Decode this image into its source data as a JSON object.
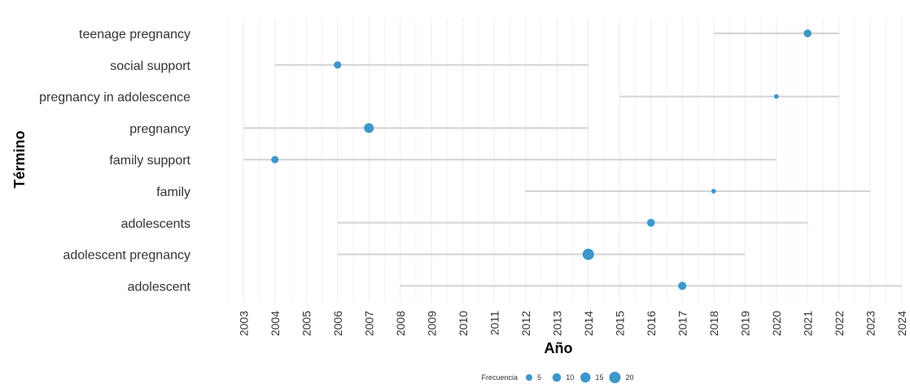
{
  "chart_data": {
    "type": "scatter",
    "xlabel": "Año",
    "ylabel": "Término",
    "x_ticks": [
      2003,
      2004,
      2005,
      2006,
      2007,
      2008,
      2009,
      2010,
      2011,
      2012,
      2013,
      2014,
      2015,
      2016,
      2017,
      2018,
      2019,
      2020,
      2021,
      2022,
      2023,
      2024
    ],
    "grid": true,
    "terms": [
      {
        "term": "teenage pregnancy",
        "start": 2018,
        "end": 2022,
        "peak_year": 2021,
        "frequency": 8
      },
      {
        "term": "social support",
        "start": 2004,
        "end": 2014,
        "peak_year": 2006,
        "frequency": 7
      },
      {
        "term": "pregnancy in adolescence",
        "start": 2015,
        "end": 2022,
        "peak_year": 2020,
        "frequency": 2
      },
      {
        "term": "pregnancy",
        "start": 2003,
        "end": 2014,
        "peak_year": 2007,
        "frequency": 14
      },
      {
        "term": "family support",
        "start": 2003,
        "end": 2020,
        "peak_year": 2004,
        "frequency": 7
      },
      {
        "term": "family",
        "start": 2012,
        "end": 2023,
        "peak_year": 2018,
        "frequency": 2
      },
      {
        "term": "adolescents",
        "start": 2006,
        "end": 2021,
        "peak_year": 2016,
        "frequency": 8
      },
      {
        "term": "adolescent pregnancy",
        "start": 2006,
        "end": 2019,
        "peak_year": 2014,
        "frequency": 20
      },
      {
        "term": "adolescent",
        "start": 2008,
        "end": 2024,
        "peak_year": 2017,
        "frequency": 9
      }
    ],
    "legend": {
      "title": "Frecuencia",
      "placement": "bottom",
      "sizes": [
        5,
        10,
        15,
        20
      ],
      "labels": [
        "5",
        "10",
        "15",
        "20"
      ]
    },
    "colors": {
      "point": "#3d97c9",
      "segment": "#d3d3d3",
      "grid": "#ebebeb"
    }
  }
}
